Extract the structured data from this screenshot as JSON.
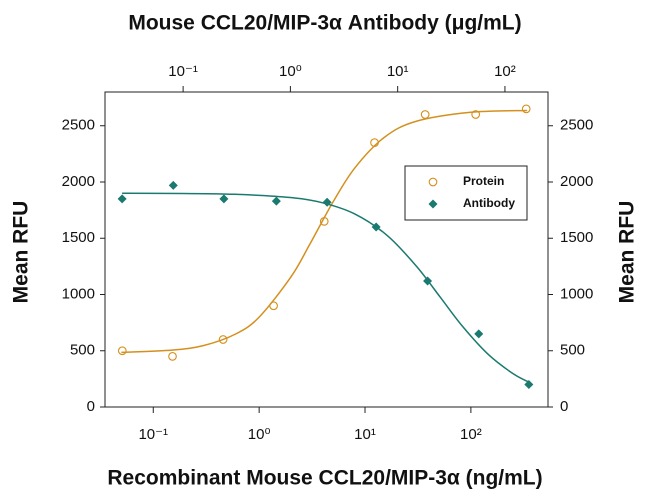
{
  "chart_data": {
    "type": "scatter",
    "title": "Mouse CCL20/MIP-3α Antibody (μg/mL)",
    "xlabel": "Recombinant Mouse CCL20/MIP-3α (ng/mL)",
    "ylabel": "Mean RFU",
    "y2label": "Mean RFU",
    "xscale": "log",
    "xlim": [
      0.035,
      535
    ],
    "xticks": [
      {
        "value": 0.1,
        "label": "10⁻¹"
      },
      {
        "value": 1,
        "label": "10⁰"
      },
      {
        "value": 10,
        "label": "10¹"
      },
      {
        "value": 100,
        "label": "10²"
      }
    ],
    "x2lim": [
      0.0187,
      252
    ],
    "x2ticks": [
      {
        "value": 0.1,
        "label": "10⁻¹"
      },
      {
        "value": 1,
        "label": "10⁰"
      },
      {
        "value": 10,
        "label": "10¹"
      },
      {
        "value": 100,
        "label": "10²"
      }
    ],
    "ylim": [
      0,
      2800
    ],
    "yticks": [
      0,
      500,
      1000,
      1500,
      2000,
      2500
    ],
    "y2lim": [
      0,
      2800
    ],
    "y2ticks": [
      0,
      500,
      1000,
      1500,
      2000,
      2500
    ],
    "legend": "upper-right",
    "series": [
      {
        "name": "Protein",
        "color": "#d4901e",
        "marker": "circle",
        "x": [
          0.051,
          0.152,
          0.457,
          1.37,
          4.12,
          12.3,
          37,
          111,
          333
        ],
        "values": [
          500,
          450,
          600,
          900,
          1650,
          2350,
          2600,
          2600,
          2650
        ],
        "fit": {
          "x": [
            0.05,
            0.15,
            0.3,
            0.6,
            1,
            2,
            3,
            5,
            8,
            15,
            30,
            100,
            340
          ],
          "values": [
            486,
            506,
            547,
            649,
            799,
            1157,
            1444,
            1824,
            2124,
            2392,
            2538,
            2620,
            2636
          ]
        }
      },
      {
        "name": "Antibody",
        "color": "#1a7a70",
        "marker": "diamond",
        "axis": "x2",
        "x": [
          0.027,
          0.081,
          0.24,
          0.74,
          2.2,
          6.3,
          19,
          57,
          167
        ],
        "values": [
          1850,
          1970,
          1850,
          1830,
          1820,
          1600,
          1120,
          650,
          200
        ],
        "fit": {
          "x": [
            0.027,
            0.1,
            0.3,
            1,
            2,
            4,
            8,
            15,
            25,
            40,
            70,
            120,
            167
          ],
          "values": [
            1900,
            1898,
            1891,
            1862,
            1815,
            1715,
            1524,
            1250,
            975,
            720,
            467,
            294,
            222
          ]
        }
      }
    ]
  }
}
